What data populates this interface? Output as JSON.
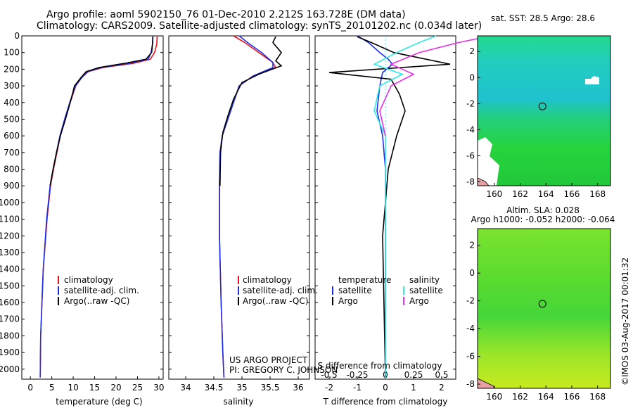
{
  "header": {
    "title_line1": "Argo profile: aoml 5902150_76 01-Dec-2010 2.212S 163.728E (DM data)",
    "title_line2": "Climatology: CARS2009. Satellite-adjusted climatology: synTS_20101202.nc (0.034d later)"
  },
  "colors": {
    "climatology": "#e8141c",
    "satellite": "#1c2ee8",
    "argo": "#000000",
    "sat_salinity": "#2ee8e8",
    "argo_salinity": "#e82ee8"
  },
  "credit": {
    "project": "US ARGO PROJECT",
    "pi": "PI: GREGORY C. JOHNSON"
  },
  "timestamp": "©IMOS 03-Aug-2017 00:01:32",
  "chart_data": [
    {
      "type": "line",
      "name": "temperature-profile",
      "xlabel": "temperature (deg C)",
      "ylabel": "",
      "xlim": [
        -2,
        31
      ],
      "ylim": [
        2060,
        0
      ],
      "xticks": [
        0,
        5,
        10,
        15,
        20,
        25,
        30
      ],
      "yticks": [
        0,
        100,
        200,
        300,
        400,
        500,
        600,
        700,
        800,
        900,
        1000,
        1100,
        1200,
        1300,
        1400,
        1500,
        1600,
        1700,
        1800,
        1900,
        2000
      ],
      "legend": [
        "climatology",
        "satellite-adj. clim.",
        "Argo(..raw -QC)"
      ],
      "series": [
        {
          "name": "climatology",
          "color": "#e8141c",
          "x": [
            29.6,
            29.5,
            29.0,
            28.0,
            24.0,
            17.0,
            13.5,
            12.0,
            10.6,
            9.3,
            8.1,
            7.0,
            6.2,
            5.4,
            4.7,
            3.9,
            3.0,
            2.4,
            2.3
          ],
          "y": [
            0,
            50,
            100,
            140,
            165,
            190,
            215,
            250,
            300,
            400,
            500,
            600,
            700,
            800,
            900,
            1100,
            1400,
            1800,
            2050
          ]
        },
        {
          "name": "satellite",
          "color": "#1c2ee8",
          "x": [
            28.6,
            28.5,
            28.2,
            27.5,
            23.0,
            16.5,
            13.3,
            12.0,
            10.5,
            9.2,
            8.0,
            6.9,
            6.1,
            5.3,
            4.6,
            3.8,
            3.0,
            2.4,
            2.3
          ],
          "y": [
            0,
            50,
            100,
            140,
            165,
            190,
            215,
            250,
            300,
            400,
            500,
            600,
            700,
            800,
            900,
            1100,
            1400,
            1800,
            2050
          ]
        },
        {
          "name": "argo",
          "color": "#000000",
          "x": [
            28.6,
            28.5,
            28.3,
            27.0,
            22.0,
            16.0,
            13.0,
            11.8,
            10.3,
            9.3,
            8.2,
            7.0,
            6.1,
            5.3,
            4.6
          ],
          "y": [
            5,
            50,
            100,
            140,
            165,
            190,
            215,
            250,
            300,
            400,
            500,
            600,
            700,
            800,
            900
          ]
        }
      ]
    },
    {
      "type": "line",
      "name": "salinity-profile",
      "xlabel": "salinity",
      "xlim": [
        33.7,
        36.2
      ],
      "ylim": [
        2060,
        0
      ],
      "xticks": [
        34,
        34.5,
        35,
        35.5,
        36
      ],
      "legend": [
        "climatology",
        "satellite-adj. clim.",
        "Argo(..raw -QC)"
      ],
      "series": [
        {
          "name": "climatology",
          "color": "#e8141c",
          "x": [
            34.85,
            35.05,
            35.3,
            35.55,
            35.6,
            35.2,
            34.95,
            34.85,
            34.75,
            34.65,
            34.61,
            34.6,
            34.6,
            34.63,
            34.66,
            34.68
          ],
          "y": [
            0,
            40,
            100,
            160,
            190,
            240,
            300,
            400,
            500,
            600,
            700,
            900,
            1200,
            1600,
            1900,
            2050
          ]
        },
        {
          "name": "satellite",
          "color": "#1c2ee8",
          "x": [
            34.95,
            35.1,
            35.35,
            35.55,
            35.55,
            35.2,
            34.95,
            34.85,
            34.75,
            34.65,
            34.61,
            34.6,
            34.6,
            34.63,
            34.66,
            34.68
          ],
          "y": [
            0,
            40,
            100,
            160,
            190,
            240,
            300,
            400,
            500,
            600,
            700,
            900,
            1200,
            1600,
            1900,
            2050
          ]
        },
        {
          "name": "argo",
          "color": "#000000",
          "x": [
            35.6,
            35.55,
            35.7,
            35.6,
            35.7,
            35.3,
            35.0,
            34.85,
            34.75,
            34.66,
            34.62,
            34.61
          ],
          "y": [
            5,
            40,
            100,
            150,
            180,
            230,
            280,
            380,
            480,
            580,
            700,
            900
          ]
        }
      ]
    },
    {
      "type": "line",
      "name": "difference-profile",
      "xlabel": "T difference from climatology",
      "xlabel2": "S difference from climatology",
      "xlim": [
        -2.5,
        2.5
      ],
      "ylim": [
        2060,
        0
      ],
      "xticks": [
        -2,
        -1,
        0,
        1,
        2
      ],
      "xticks2": [
        -0.5,
        -0.25,
        0,
        0.25,
        0.5
      ],
      "legend_temperature": {
        "title": "temperature",
        "entries": [
          "satellite",
          "Argo"
        ]
      },
      "legend_salinity": {
        "title": "salinity",
        "entries": [
          "satellite",
          "Argo"
        ]
      },
      "series": [
        {
          "name": "T satellite",
          "color": "#1c2ee8",
          "x": [
            -1.0,
            -0.6,
            -0.2,
            0.1,
            0.25,
            -0.1,
            -0.2,
            -0.3,
            -0.1,
            0.0,
            0.0,
            0.0
          ],
          "y": [
            0,
            40,
            100,
            140,
            170,
            220,
            300,
            450,
            600,
            800,
            1200,
            2050
          ]
        },
        {
          "name": "T argo",
          "color": "#000000",
          "x": [
            -1.0,
            -0.5,
            0.3,
            2.3,
            -2.0,
            0.2,
            0.5,
            0.7,
            0.4,
            0.1,
            -0.1,
            0.0
          ],
          "y": [
            5,
            40,
            100,
            170,
            220,
            260,
            350,
            450,
            600,
            800,
            1200,
            2050
          ]
        },
        {
          "name": "S satellite",
          "color": "#2ee8e8",
          "x": [
            0.45,
            0.3,
            0.1,
            -0.1,
            0.15,
            -0.05,
            -0.1,
            0.0,
            0.0,
            0.0
          ],
          "y": [
            0,
            40,
            100,
            170,
            230,
            300,
            450,
            600,
            900,
            2050
          ]
        },
        {
          "name": "S argo",
          "color": "#e82ee8",
          "x": [
            0.9,
            0.65,
            0.3,
            0.05,
            0.25,
            0.05,
            -0.05,
            0.0
          ],
          "y": [
            5,
            40,
            100,
            170,
            230,
            300,
            450,
            600
          ]
        }
      ]
    },
    {
      "type": "heatmap",
      "name": "sst-map",
      "title": "sat. SST: 28.5 Argo: 28.6",
      "xlim": [
        158.7,
        169
      ],
      "ylim": [
        -8.3,
        3.2
      ],
      "xticks": [
        160,
        162,
        164,
        166,
        168
      ],
      "yticks": [
        2,
        0,
        -2,
        -4,
        -6,
        -8
      ],
      "profile_marker": {
        "lon": 163.728,
        "lat": -2.212
      }
    },
    {
      "type": "heatmap",
      "name": "sla-map",
      "title": "Altim. SLA: 0.028",
      "title2": "Argo h1000: -0.052 h2000: -0.064",
      "xlim": [
        158.7,
        169
      ],
      "ylim": [
        -8.3,
        3.2
      ],
      "xticks": [
        160,
        162,
        164,
        166,
        168
      ],
      "yticks": [
        2,
        0,
        -2,
        -4,
        -6,
        -8
      ],
      "profile_marker": {
        "lon": 163.728,
        "lat": -2.212
      }
    }
  ]
}
